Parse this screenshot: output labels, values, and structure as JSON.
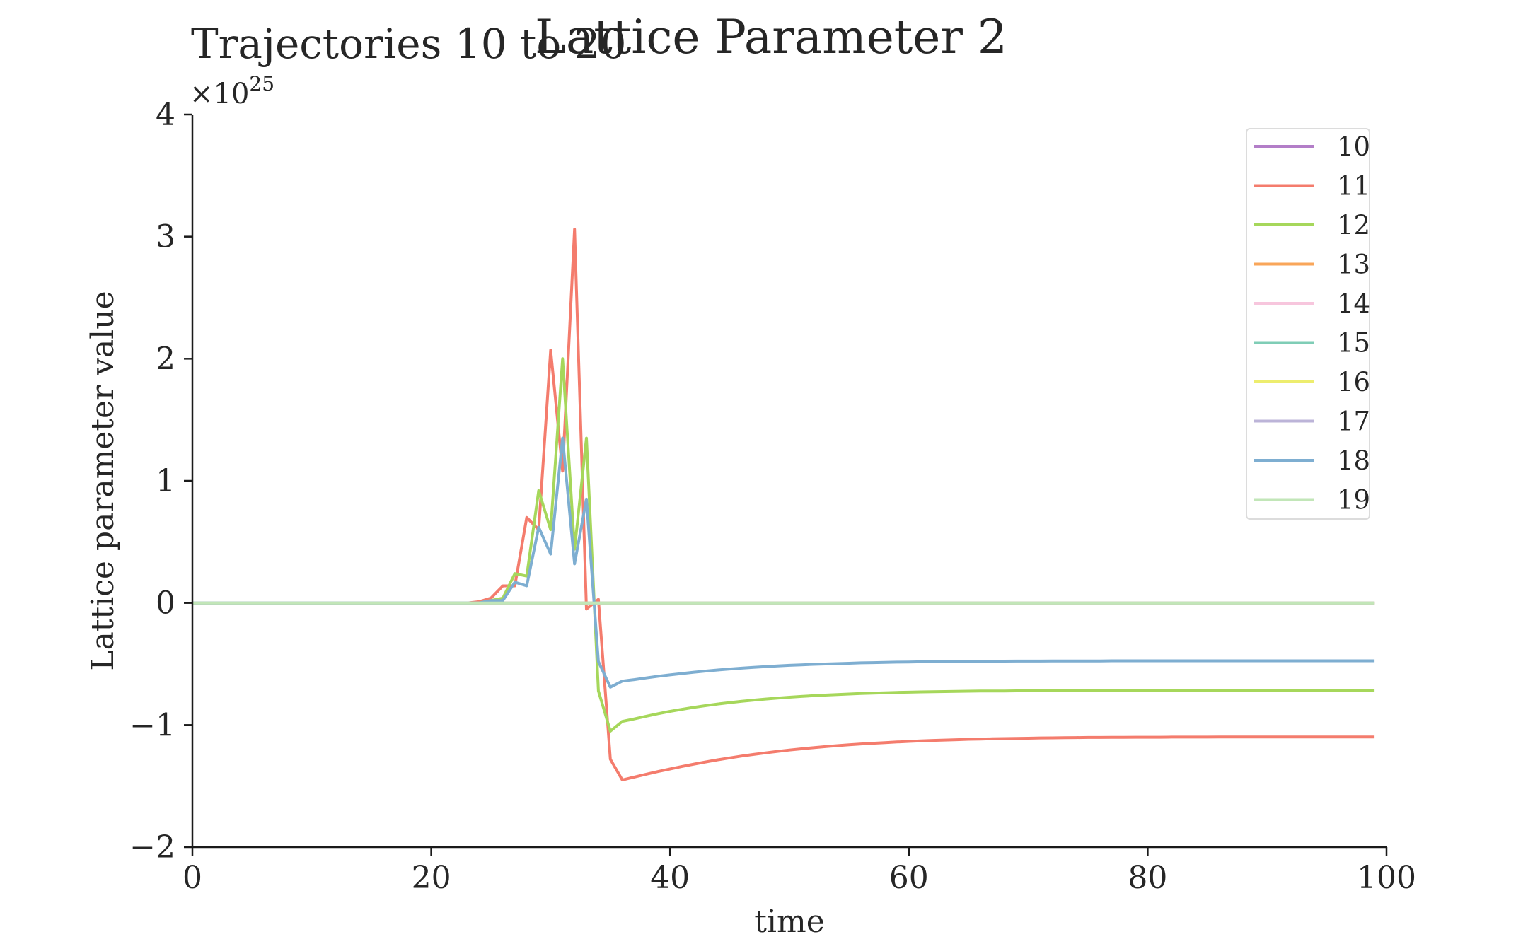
{
  "chart_data": {
    "type": "line",
    "title": "Lattice Parameter 2",
    "subtitle": "Trajectories 10 to 20",
    "xlabel": "time",
    "ylabel": "Lattice parameter value",
    "y_multiplier_label": "×10",
    "y_multiplier_exponent": "25",
    "xlim": [
      0,
      100
    ],
    "ylim": [
      -2,
      4
    ],
    "xticks": [
      0,
      20,
      40,
      60,
      80,
      100
    ],
    "yticks": [
      -2,
      -1,
      0,
      1,
      2,
      3,
      4
    ],
    "ytick_labels": [
      "−2",
      "−1",
      "0",
      "1",
      "2",
      "3",
      "4"
    ],
    "grid": false,
    "legend_position": "top-right",
    "x": [
      0,
      1,
      2,
      3,
      4,
      5,
      6,
      7,
      8,
      9,
      10,
      11,
      12,
      13,
      14,
      15,
      16,
      17,
      18,
      19,
      20,
      21,
      22,
      23,
      24,
      25,
      26,
      27,
      28,
      29,
      30,
      31,
      32,
      33,
      34,
      35,
      36,
      37,
      38,
      39,
      40,
      41,
      42,
      43,
      44,
      45,
      46,
      47,
      48,
      49,
      50,
      51,
      52,
      53,
      54,
      55,
      56,
      57,
      58,
      59,
      60,
      61,
      62,
      63,
      64,
      65,
      66,
      67,
      68,
      69,
      70,
      71,
      72,
      73,
      74,
      75,
      76,
      77,
      78,
      79,
      80,
      81,
      82,
      83,
      84,
      85,
      86,
      87,
      88,
      89,
      90,
      91,
      92,
      93,
      94,
      95,
      96,
      97,
      98,
      99
    ],
    "series": [
      {
        "name": "10",
        "color": "#b37ec8",
        "values": [
          0,
          0,
          0,
          0,
          0,
          0,
          0,
          0,
          0,
          0,
          0,
          0,
          0,
          0,
          0,
          0,
          0,
          0,
          0,
          0,
          0,
          0,
          0,
          0,
          0,
          0,
          0,
          0,
          0,
          0,
          0,
          0,
          0,
          0,
          0,
          0,
          0,
          0,
          0,
          0,
          0,
          0,
          0,
          0,
          0,
          0,
          0,
          0,
          0,
          0,
          0,
          0,
          0,
          0,
          0,
          0,
          0,
          0,
          0,
          0,
          0,
          0,
          0,
          0,
          0,
          0,
          0,
          0,
          0,
          0,
          0,
          0,
          0,
          0,
          0,
          0,
          0,
          0,
          0,
          0,
          0,
          0,
          0,
          0,
          0,
          0,
          0,
          0,
          0,
          0,
          0,
          0,
          0,
          0,
          0,
          0,
          0,
          0,
          0,
          0
        ]
      },
      {
        "name": "11",
        "color": "#f47c6d",
        "values": [
          0,
          0,
          0,
          0,
          0,
          0,
          0,
          0,
          0,
          0,
          0,
          0,
          0,
          0,
          0,
          0,
          0,
          0,
          0,
          0,
          0,
          0,
          0,
          0,
          0.01,
          0.04,
          0.14,
          0.14,
          0.7,
          0.6,
          2.07,
          1.08,
          3.06,
          -0.05,
          0.03,
          -1.28,
          -1.45,
          -1.426,
          -1.403,
          -1.381,
          -1.36,
          -1.339,
          -1.32,
          -1.302,
          -1.285,
          -1.269,
          -1.254,
          -1.241,
          -1.228,
          -1.216,
          -1.205,
          -1.195,
          -1.186,
          -1.177,
          -1.169,
          -1.162,
          -1.155,
          -1.149,
          -1.144,
          -1.139,
          -1.134,
          -1.13,
          -1.126,
          -1.123,
          -1.12,
          -1.117,
          -1.115,
          -1.113,
          -1.111,
          -1.109,
          -1.108,
          -1.106,
          -1.105,
          -1.104,
          -1.103,
          -1.102,
          -1.102,
          -1.101,
          -1.101,
          -1.1,
          -1.1,
          -1.1,
          -1.099,
          -1.099,
          -1.099,
          -1.099,
          -1.098,
          -1.098,
          -1.098,
          -1.098,
          -1.098,
          -1.098,
          -1.098,
          -1.098,
          -1.098,
          -1.098,
          -1.098,
          -1.098,
          -1.098,
          -1.098
        ]
      },
      {
        "name": "12",
        "color": "#a6d75b",
        "values": [
          0,
          0,
          0,
          0,
          0,
          0,
          0,
          0,
          0,
          0,
          0,
          0,
          0,
          0,
          0,
          0,
          0,
          0,
          0,
          0,
          0,
          0,
          0,
          0,
          0,
          0.02,
          0.04,
          0.24,
          0.22,
          0.92,
          0.6,
          2.0,
          0.44,
          1.35,
          -0.72,
          -1.05,
          -0.97,
          -0.95,
          -0.928,
          -0.907,
          -0.888,
          -0.871,
          -0.855,
          -0.841,
          -0.828,
          -0.816,
          -0.806,
          -0.796,
          -0.787,
          -0.779,
          -0.772,
          -0.766,
          -0.76,
          -0.755,
          -0.75,
          -0.746,
          -0.742,
          -0.739,
          -0.736,
          -0.733,
          -0.731,
          -0.729,
          -0.727,
          -0.726,
          -0.724,
          -0.723,
          -0.722,
          -0.721,
          -0.721,
          -0.72,
          -0.72,
          -0.719,
          -0.719,
          -0.719,
          -0.718,
          -0.718,
          -0.718,
          -0.718,
          -0.718,
          -0.718,
          -0.718,
          -0.718,
          -0.718,
          -0.718,
          -0.718,
          -0.718,
          -0.718,
          -0.718,
          -0.718,
          -0.718,
          -0.718,
          -0.718,
          -0.718,
          -0.718,
          -0.718,
          -0.718,
          -0.718,
          -0.718,
          -0.718,
          -0.718
        ]
      },
      {
        "name": "13",
        "color": "#f9a65a",
        "values": [
          0,
          0,
          0,
          0,
          0,
          0,
          0,
          0,
          0,
          0,
          0,
          0,
          0,
          0,
          0,
          0,
          0,
          0,
          0,
          0,
          0,
          0,
          0,
          0,
          0,
          0,
          0,
          0,
          0,
          0,
          0,
          0,
          0,
          0,
          0,
          0,
          0,
          0,
          0,
          0,
          0,
          0,
          0,
          0,
          0,
          0,
          0,
          0,
          0,
          0,
          0,
          0,
          0,
          0,
          0,
          0,
          0,
          0,
          0,
          0,
          0,
          0,
          0,
          0,
          0,
          0,
          0,
          0,
          0,
          0,
          0,
          0,
          0,
          0,
          0,
          0,
          0,
          0,
          0,
          0,
          0,
          0,
          0,
          0,
          0,
          0,
          0,
          0,
          0,
          0,
          0,
          0,
          0,
          0,
          0,
          0,
          0,
          0,
          0,
          0
        ]
      },
      {
        "name": "14",
        "color": "#f7c6dd",
        "values": [
          0,
          0,
          0,
          0,
          0,
          0,
          0,
          0,
          0,
          0,
          0,
          0,
          0,
          0,
          0,
          0,
          0,
          0,
          0,
          0,
          0,
          0,
          0,
          0,
          0,
          0,
          0,
          0,
          0,
          0,
          0,
          0,
          0,
          0,
          0,
          0,
          0,
          0,
          0,
          0,
          0,
          0,
          0,
          0,
          0,
          0,
          0,
          0,
          0,
          0,
          0,
          0,
          0,
          0,
          0,
          0,
          0,
          0,
          0,
          0,
          0,
          0,
          0,
          0,
          0,
          0,
          0,
          0,
          0,
          0,
          0,
          0,
          0,
          0,
          0,
          0,
          0,
          0,
          0,
          0,
          0,
          0,
          0,
          0,
          0,
          0,
          0,
          0,
          0,
          0,
          0,
          0,
          0,
          0,
          0,
          0,
          0,
          0,
          0,
          0
        ]
      },
      {
        "name": "15",
        "color": "#7fcdb6",
        "values": [
          0,
          0,
          0,
          0,
          0,
          0,
          0,
          0,
          0,
          0,
          0,
          0,
          0,
          0,
          0,
          0,
          0,
          0,
          0,
          0,
          0,
          0,
          0,
          0,
          0,
          0,
          0,
          0,
          0,
          0,
          0,
          0,
          0,
          0,
          0,
          0,
          0,
          0,
          0,
          0,
          0,
          0,
          0,
          0,
          0,
          0,
          0,
          0,
          0,
          0,
          0,
          0,
          0,
          0,
          0,
          0,
          0,
          0,
          0,
          0,
          0,
          0,
          0,
          0,
          0,
          0,
          0,
          0,
          0,
          0,
          0,
          0,
          0,
          0,
          0,
          0,
          0,
          0,
          0,
          0,
          0,
          0,
          0,
          0,
          0,
          0,
          0,
          0,
          0,
          0,
          0,
          0,
          0,
          0,
          0,
          0,
          0,
          0,
          0,
          0
        ]
      },
      {
        "name": "16",
        "color": "#eded6e",
        "values": [
          0,
          0,
          0,
          0,
          0,
          0,
          0,
          0,
          0,
          0,
          0,
          0,
          0,
          0,
          0,
          0,
          0,
          0,
          0,
          0,
          0,
          0,
          0,
          0,
          0,
          0,
          0,
          0,
          0,
          0,
          0,
          0,
          0,
          0,
          0,
          0,
          0,
          0,
          0,
          0,
          0,
          0,
          0,
          0,
          0,
          0,
          0,
          0,
          0,
          0,
          0,
          0,
          0,
          0,
          0,
          0,
          0,
          0,
          0,
          0,
          0,
          0,
          0,
          0,
          0,
          0,
          0,
          0,
          0,
          0,
          0,
          0,
          0,
          0,
          0,
          0,
          0,
          0,
          0,
          0,
          0,
          0,
          0,
          0,
          0,
          0,
          0,
          0,
          0,
          0,
          0,
          0,
          0,
          0,
          0,
          0,
          0,
          0,
          0,
          0
        ]
      },
      {
        "name": "17",
        "color": "#bcb4d8",
        "values": [
          0,
          0,
          0,
          0,
          0,
          0,
          0,
          0,
          0,
          0,
          0,
          0,
          0,
          0,
          0,
          0,
          0,
          0,
          0,
          0,
          0,
          0,
          0,
          0,
          0,
          0,
          0,
          0,
          0,
          0,
          0,
          0,
          0,
          0,
          0,
          0,
          0,
          0,
          0,
          0,
          0,
          0,
          0,
          0,
          0,
          0,
          0,
          0,
          0,
          0,
          0,
          0,
          0,
          0,
          0,
          0,
          0,
          0,
          0,
          0,
          0,
          0,
          0,
          0,
          0,
          0,
          0,
          0,
          0,
          0,
          0,
          0,
          0,
          0,
          0,
          0,
          0,
          0,
          0,
          0,
          0,
          0,
          0,
          0,
          0,
          0,
          0,
          0,
          0,
          0,
          0,
          0,
          0,
          0,
          0,
          0,
          0,
          0,
          0,
          0
        ]
      },
      {
        "name": "18",
        "color": "#7eaed1",
        "values": [
          0,
          0,
          0,
          0,
          0,
          0,
          0,
          0,
          0,
          0,
          0,
          0,
          0,
          0,
          0,
          0,
          0,
          0,
          0,
          0,
          0,
          0,
          0,
          0,
          0,
          0.02,
          0.02,
          0.17,
          0.14,
          0.62,
          0.4,
          1.35,
          0.32,
          0.85,
          -0.48,
          -0.69,
          -0.64,
          -0.628,
          -0.614,
          -0.601,
          -0.589,
          -0.578,
          -0.567,
          -0.558,
          -0.549,
          -0.541,
          -0.534,
          -0.528,
          -0.522,
          -0.516,
          -0.511,
          -0.507,
          -0.503,
          -0.5,
          -0.497,
          -0.494,
          -0.491,
          -0.489,
          -0.487,
          -0.485,
          -0.484,
          -0.482,
          -0.481,
          -0.48,
          -0.479,
          -0.478,
          -0.478,
          -0.477,
          -0.477,
          -0.476,
          -0.476,
          -0.476,
          -0.475,
          -0.475,
          -0.475,
          -0.475,
          -0.475,
          -0.474,
          -0.474,
          -0.474,
          -0.474,
          -0.474,
          -0.474,
          -0.474,
          -0.474,
          -0.474,
          -0.474,
          -0.474,
          -0.474,
          -0.474,
          -0.474,
          -0.474,
          -0.474,
          -0.474,
          -0.474,
          -0.474,
          -0.474,
          -0.474,
          -0.474,
          -0.474
        ]
      },
      {
        "name": "19",
        "color": "#c2e6b8",
        "values": [
          0,
          0,
          0,
          0,
          0,
          0,
          0,
          0,
          0,
          0,
          0,
          0,
          0,
          0,
          0,
          0,
          0,
          0,
          0,
          0,
          0,
          0,
          0,
          0,
          0,
          0,
          0,
          0,
          0,
          0,
          0,
          0,
          0,
          0,
          0,
          0,
          0,
          0,
          0,
          0,
          0,
          0,
          0,
          0,
          0,
          0,
          0,
          0,
          0,
          0,
          0,
          0,
          0,
          0,
          0,
          0,
          0,
          0,
          0,
          0,
          0,
          0,
          0,
          0,
          0,
          0,
          0,
          0,
          0,
          0,
          0,
          0,
          0,
          0,
          0,
          0,
          0,
          0,
          0,
          0,
          0,
          0,
          0,
          0,
          0,
          0,
          0,
          0,
          0,
          0,
          0,
          0,
          0,
          0,
          0,
          0,
          0,
          0,
          0,
          0
        ]
      }
    ]
  }
}
